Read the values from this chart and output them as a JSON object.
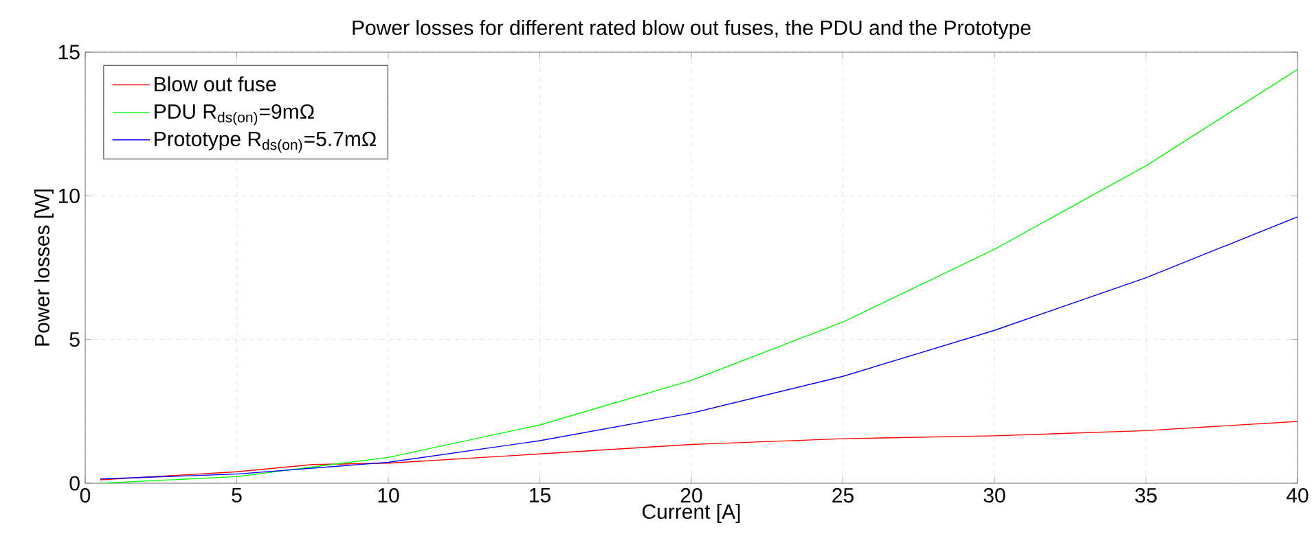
{
  "chart_data": {
    "type": "line",
    "title": "Power losses for different rated blow out fuses, the PDU and the Prototype",
    "xlabel": "Current [A]",
    "ylabel": "Power losses [W]",
    "x": [
      0.5,
      5,
      10,
      15,
      20,
      25,
      30,
      35,
      40
    ],
    "series": [
      {
        "name": "Blow out fuse",
        "color": "#ff0000",
        "x": [
          0.5,
          5,
          7.5,
          10,
          15,
          20,
          25,
          30,
          35,
          40
        ],
        "values": [
          0.12,
          0.4,
          0.65,
          0.7,
          1.02,
          1.35,
          1.55,
          1.65,
          1.83,
          2.15
        ]
      },
      {
        "name": "PDU R$_{ds(on)}$=9mΩ",
        "color": "#00ff00",
        "values": [
          0.0,
          0.23,
          0.9,
          2.03,
          3.58,
          5.61,
          8.14,
          11.05,
          14.4
        ]
      },
      {
        "name": "Prototype R$_{ds(on)}$=5.7mΩ",
        "color": "#0000ff",
        "values": [
          0.15,
          0.32,
          0.73,
          1.48,
          2.44,
          3.72,
          5.32,
          7.15,
          9.27
        ]
      }
    ],
    "xlim": [
      0,
      40
    ],
    "ylim": [
      0,
      15
    ],
    "xticks": [
      0,
      5,
      10,
      15,
      20,
      25,
      30,
      35,
      40
    ],
    "yticks": [
      0,
      5,
      10,
      15
    ],
    "grid": true,
    "legend": "top left",
    "marker": "none",
    "line_style": "solid"
  }
}
